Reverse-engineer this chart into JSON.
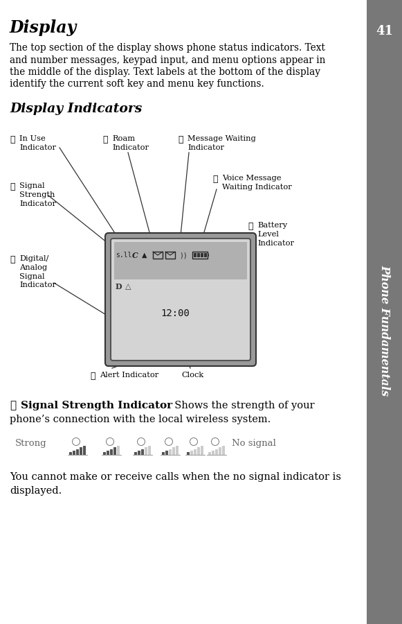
{
  "title": "Display",
  "body_lines": [
    "The top section of the display shows phone status indicators. Text",
    "and number messages, keypad input, and menu options appear in",
    "the middle of the display. Text labels at the bottom of the display",
    "identify the current soft key and menu key functions."
  ],
  "section_title": "Display Indicators",
  "sidebar_text": "Phone Fundamentals",
  "sidebar_bg": "#787878",
  "sidebar_text_color": "#ffffff",
  "page_number": "41",
  "page_bg": "#ffffff",
  "text_color": "#000000",
  "screen_time": "12:00",
  "screen_bg": "#d4d4d4",
  "screen_border": "#444444",
  "screen_statusbar_bg": "#b0b0b0",
  "strong_label": "Strong",
  "no_signal_label": "No signal",
  "cannot_text_line1": "You cannot make or receive calls when the no signal indicator is",
  "cannot_text_line2": "displayed.",
  "label_in_use_num": "❷",
  "label_in_use": "In Use\nIndicator",
  "label_signal_num": "❶",
  "label_signal": "Signal\nStrength\nIndicator",
  "label_digital_num": "➉",
  "label_digital": "Digital/\nAnalog\nSignal\nIndicator",
  "label_roam_num": "❸",
  "label_roam": "Roam\nIndicator",
  "label_msg_num": "❹",
  "label_msg": "Message Waiting\nIndicator",
  "label_voice_num": "❺",
  "label_voice": "Voice Message\nWaiting Indicator",
  "label_battery_num": "❻",
  "label_battery": "Battery\nLevel\nIndicator",
  "label_alert_num": "❼",
  "label_alert": "Alert Indicator",
  "label_clock": "Clock",
  "signal_bold_num": "❶",
  "signal_bold_text": "Signal Strength Indicator",
  "signal_normal_text": "  Shows the strength of your",
  "signal_line2": "phone’s connection with the local wireless system."
}
